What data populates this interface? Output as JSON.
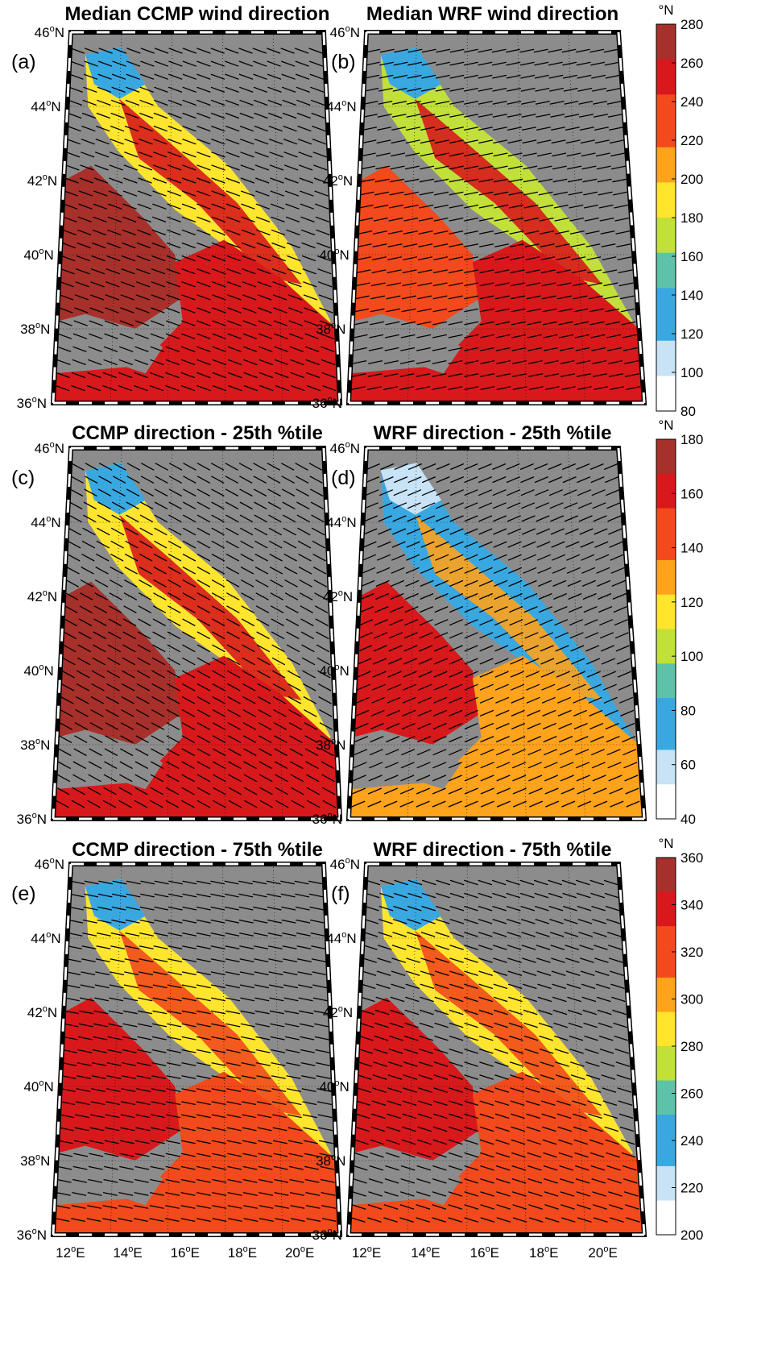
{
  "figure": {
    "panels": [
      {
        "id": "a",
        "label": "(a)",
        "title": "Median CCMP wind direction",
        "palette": "low"
      },
      {
        "id": "b",
        "label": "(b)",
        "title": "Median WRF wind direction",
        "palette": "mid"
      },
      {
        "id": "c",
        "label": "(c)",
        "title": "CCMP direction - 25th %tile",
        "palette": "low"
      },
      {
        "id": "d",
        "label": "(d)",
        "title": "WRF direction - 25th %tile",
        "palette": "mixed"
      },
      {
        "id": "e",
        "label": "(e)",
        "title": "CCMP direction - 75th %tile",
        "palette": "high"
      },
      {
        "id": "f",
        "label": "(f)",
        "title": "WRF direction - 75th %tile",
        "palette": "high"
      }
    ],
    "lat_labels": [
      "46",
      "44",
      "42",
      "40",
      "38",
      "36"
    ],
    "lat_suffix": "N",
    "lon_labels": [
      "12",
      "14",
      "16",
      "18",
      "20"
    ],
    "lon_suffix": "E",
    "degree_symbol": "o",
    "colorbars": [
      {
        "unit": "°N",
        "ticks": [
          "280",
          "260",
          "240",
          "220",
          "200",
          "180",
          "160",
          "140",
          "120",
          "100",
          "80"
        ]
      },
      {
        "unit": "°N",
        "ticks": [
          "180",
          "160",
          "140",
          "120",
          "100",
          "80",
          "60",
          "40"
        ]
      },
      {
        "unit": "°N",
        "ticks": [
          "360",
          "340",
          "320",
          "300",
          "280",
          "260",
          "240",
          "220",
          "200"
        ]
      }
    ],
    "colors": {
      "land": "#8c8c8c",
      "sea_missing": "#ffffff",
      "colormap": [
        "#ffffff",
        "#c7e3f5",
        "#3aa8e0",
        "#5cc3a8",
        "#c2e03a",
        "#ffe52e",
        "#ffa21c",
        "#f24a1c",
        "#d7191c",
        "#a8302b"
      ]
    }
  }
}
